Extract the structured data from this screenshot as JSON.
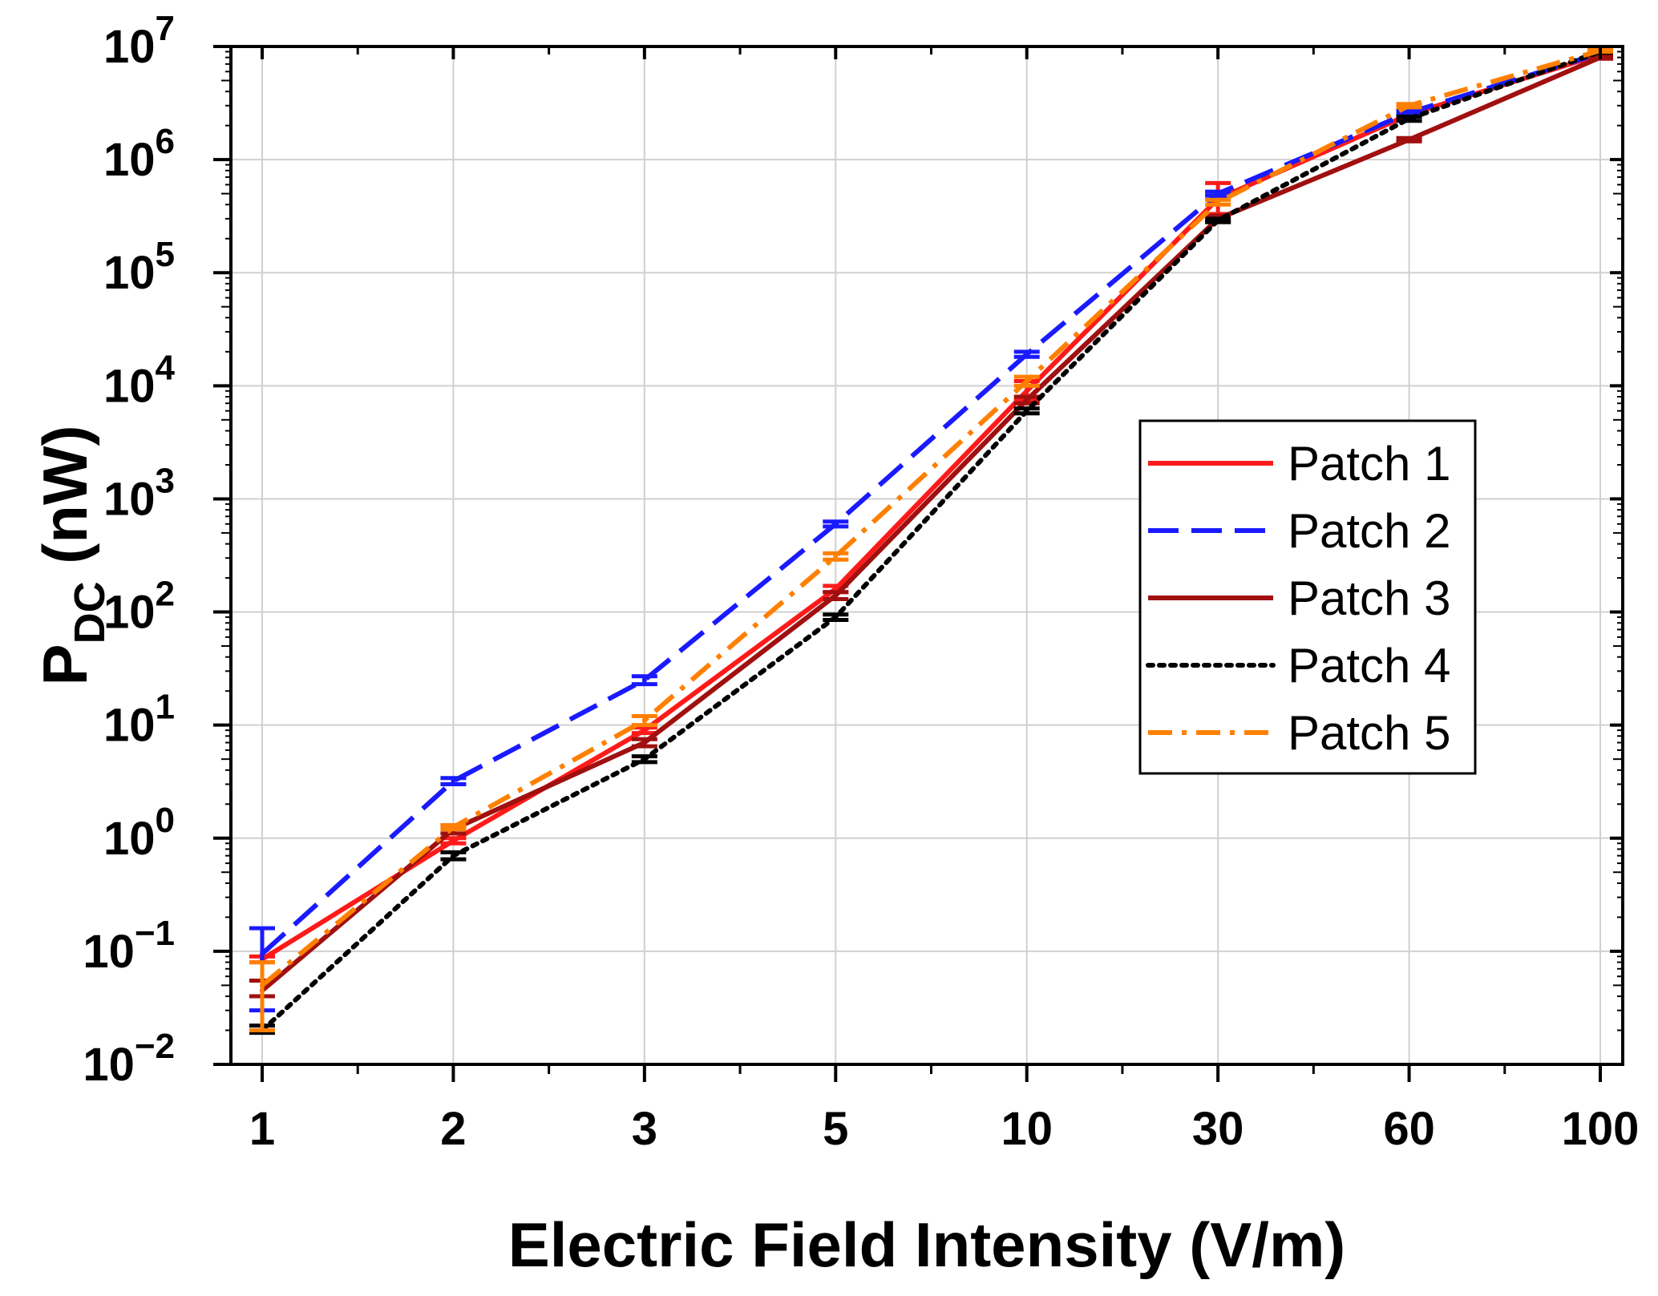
{
  "chart_data": {
    "type": "line",
    "title": "",
    "xlabel": "Electric Field Intensity (V/m)",
    "ylabel_main": "P",
    "ylabel_sub": "DC",
    "ylabel_unit": " (nW)",
    "y_scale": "log",
    "ylim": [
      0.01,
      10000000
    ],
    "grid": true,
    "legend_position": "center-right",
    "categories": [
      "1",
      "2",
      "3",
      "5",
      "10",
      "30",
      "60",
      "100"
    ],
    "y_ticks": [
      {
        "base": "10",
        "exp": "−2",
        "value": 0.01
      },
      {
        "base": "10",
        "exp": "−1",
        "value": 0.1
      },
      {
        "base": "10",
        "exp": "0",
        "value": 1
      },
      {
        "base": "10",
        "exp": "1",
        "value": 10
      },
      {
        "base": "10",
        "exp": "2",
        "value": 100
      },
      {
        "base": "10",
        "exp": "3",
        "value": 1000
      },
      {
        "base": "10",
        "exp": "4",
        "value": 10000
      },
      {
        "base": "10",
        "exp": "5",
        "value": 100000
      },
      {
        "base": "10",
        "exp": "6",
        "value": 1000000
      },
      {
        "base": "10",
        "exp": "7",
        "value": 10000000
      }
    ],
    "series": [
      {
        "name": "Patch 1",
        "color": "#ff1a1a",
        "dash": "solid",
        "values": [
          0.085,
          0.95,
          9,
          160,
          9000,
          450000,
          2500000,
          8500000
        ],
        "errors": [
          [
            0.08,
            0.09
          ],
          [
            0.9,
            1.0
          ],
          [
            8.5,
            9.5
          ],
          [
            150,
            170
          ],
          [
            7500,
            11000
          ],
          [
            330000,
            620000
          ],
          [
            2400000,
            2600000
          ],
          [
            8000000,
            9000000
          ]
        ]
      },
      {
        "name": "Patch 2",
        "color": "#1a1aff",
        "dash": "long-dash",
        "values": [
          0.095,
          3.2,
          25,
          600,
          19000,
          500000,
          2600000,
          8700000
        ],
        "errors": [
          [
            0.03,
            0.16
          ],
          [
            3.0,
            3.4
          ],
          [
            23,
            27
          ],
          [
            570,
            630
          ],
          [
            18000,
            20000
          ],
          [
            480000,
            520000
          ],
          [
            2500000,
            2700000
          ],
          [
            8500000,
            8900000
          ]
        ]
      },
      {
        "name": "Patch 3",
        "color": "#a01010",
        "dash": "solid",
        "values": [
          0.045,
          1.2,
          7,
          140,
          7500,
          300000,
          1500000,
          8000000
        ],
        "errors": [
          [
            0.04,
            0.055
          ],
          [
            1.1,
            1.3
          ],
          [
            6.5,
            7.5
          ],
          [
            130,
            150
          ],
          [
            7000,
            8000
          ],
          [
            280000,
            320000
          ],
          [
            1450000,
            1550000
          ],
          [
            7800000,
            8200000
          ]
        ]
      },
      {
        "name": "Patch 4",
        "color": "#000000",
        "dash": "dotted",
        "values": [
          0.02,
          0.7,
          5,
          90,
          6000,
          290000,
          2300000,
          9000000
        ],
        "errors": [
          [
            0.019,
            0.022
          ],
          [
            0.65,
            0.75
          ],
          [
            4.7,
            5.3
          ],
          [
            85,
            95
          ],
          [
            5700,
            6300
          ],
          [
            280000,
            300000
          ],
          [
            2200000,
            2400000
          ],
          [
            8800000,
            9200000
          ]
        ]
      },
      {
        "name": "Patch 5",
        "color": "#ff8000",
        "dash": "dash-dot",
        "values": [
          0.05,
          1.25,
          11,
          310,
          11000,
          420000,
          3000000,
          9200000
        ],
        "errors": [
          [
            0.02,
            0.08
          ],
          [
            1.2,
            1.3
          ],
          [
            10,
            12
          ],
          [
            290,
            330
          ],
          [
            10000,
            12000
          ],
          [
            400000,
            440000
          ],
          [
            2900000,
            3100000
          ],
          [
            9000000,
            9400000
          ]
        ]
      }
    ]
  }
}
